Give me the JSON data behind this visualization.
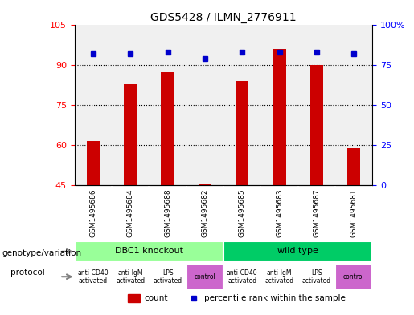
{
  "title": "GDS5428 / ILMN_2776911",
  "samples": [
    "GSM1495686",
    "GSM1495684",
    "GSM1495688",
    "GSM1495682",
    "GSM1495685",
    "GSM1495683",
    "GSM1495687",
    "GSM1495681"
  ],
  "count_values": [
    61.5,
    83.0,
    87.5,
    45.5,
    84.0,
    96.0,
    90.0,
    59.0
  ],
  "percentile_values": [
    82,
    82,
    83,
    79,
    83,
    83,
    83,
    82
  ],
  "ylim_left": [
    45,
    105
  ],
  "yticks_left": [
    45,
    60,
    75,
    90,
    105
  ],
  "ylim_right": [
    0,
    100
  ],
  "yticks_right": [
    0,
    25,
    50,
    75,
    100
  ],
  "ytick_labels_right": [
    "0",
    "25",
    "50",
    "75",
    "100%"
  ],
  "bar_color": "#cc0000",
  "dot_color": "#0000cc",
  "grid_color": "#000000",
  "bg_plot": "#f0f0f0",
  "bg_sample_row": "#cccccc",
  "genotype_groups": [
    {
      "label": "DBC1 knockout",
      "start": 0,
      "end": 3,
      "color": "#99ff99"
    },
    {
      "label": "wild type",
      "start": 4,
      "end": 7,
      "color": "#00cc66"
    }
  ],
  "protocol_labels": [
    "anti-CD40\nactivated",
    "anti-IgM\nactivated",
    "LPS\nactivated",
    "control",
    "anti-CD40\nactivated",
    "anti-IgM\nactivated",
    "LPS\nactivated",
    "control"
  ],
  "protocol_colors": [
    "#ffffff",
    "#ffffff",
    "#ffffff",
    "#cc66cc",
    "#ffffff",
    "#ffffff",
    "#ffffff",
    "#cc66cc"
  ],
  "legend_count_color": "#cc0000",
  "legend_dot_color": "#0000cc",
  "legend_count_label": "count",
  "legend_dot_label": "percentile rank within the sample"
}
